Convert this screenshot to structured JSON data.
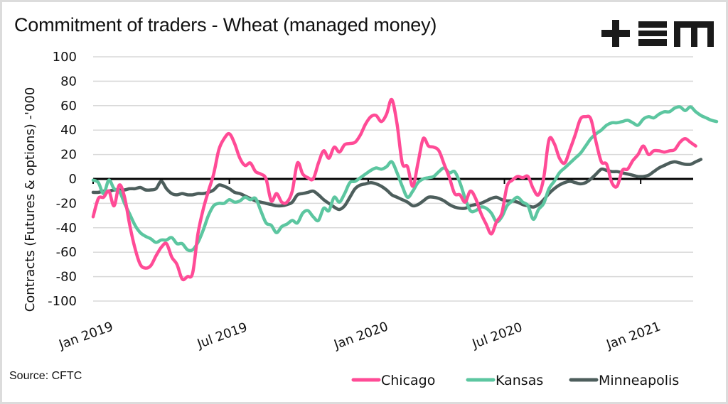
{
  "header": {
    "title": "Commitment of traders - Wheat (managed money)",
    "logo_text": "+EM"
  },
  "footer": {
    "source": "Source: CFTC"
  },
  "chart_data": {
    "type": "line",
    "title": "Commitment of traders - Wheat (managed money)",
    "xlabel": "",
    "ylabel": "Contracts (Futures & options) -'000",
    "ylim": [
      -100,
      100
    ],
    "yticks": [
      100,
      80,
      60,
      40,
      20,
      0,
      -20,
      -40,
      -60,
      -80,
      -100
    ],
    "ytick_labels": [
      "100",
      "80",
      "60",
      "40",
      "20",
      "0",
      "-20",
      "-40",
      "-60",
      "-80",
      "-100"
    ],
    "x_start": "2019-01-01",
    "x_step": "weekly",
    "x_count": 116,
    "xticks": [
      {
        "label": "Jan 2019",
        "index": 0
      },
      {
        "label": "Jul 2019",
        "index": 26
      },
      {
        "label": "Jan 2020",
        "index": 52.5
      },
      {
        "label": "Jul 2020",
        "index": 78.5
      },
      {
        "label": "Jan 2021",
        "index": 104.5
      }
    ],
    "grid": true,
    "legend_position": "bottom-right",
    "series": [
      {
        "name": "Chicago",
        "color": "#ff4b96",
        "values": [
          -31,
          -16,
          -15,
          -10,
          -22,
          -5,
          -15,
          -38,
          -57,
          -70,
          -73,
          -71,
          -63,
          -56,
          -53,
          -64,
          -70,
          -82,
          -80,
          -77,
          -45,
          -25,
          -10,
          4,
          24,
          33,
          37,
          29,
          17,
          11,
          13,
          6,
          4,
          0,
          -18,
          -12,
          -19,
          -19,
          -10,
          13,
          4,
          1,
          0,
          13,
          23,
          17,
          26,
          22,
          28,
          29,
          30,
          36,
          45,
          51,
          52,
          47,
          53,
          65,
          45,
          13,
          10,
          -6,
          13,
          33,
          27,
          26,
          23,
          12,
          1,
          -12,
          -13,
          -19,
          -10,
          -16,
          -28,
          -37,
          -45,
          -35,
          -28,
          -6,
          -1,
          2,
          1,
          2,
          -8,
          -13,
          1,
          32,
          29,
          17,
          13,
          24,
          36,
          49,
          51,
          49,
          30,
          14,
          12,
          -3,
          -6,
          7,
          8,
          15,
          20,
          27,
          20,
          23,
          23,
          22,
          23,
          24,
          30,
          33,
          30,
          27
        ]
      },
      {
        "name": "Kansas",
        "color": "#5cc6a0",
        "values": [
          -1,
          -3,
          -12,
          -1,
          -8,
          -10,
          -20,
          -29,
          -38,
          -44,
          -47,
          -49,
          -52,
          -50,
          -50,
          -48,
          -53,
          -53,
          -58,
          -58,
          -52,
          -42,
          -30,
          -22,
          -20,
          -20,
          -17,
          -19,
          -18,
          -15,
          -17,
          -16,
          -26,
          -36,
          -38,
          -44,
          -39,
          -37,
          -34,
          -36,
          -28,
          -26,
          -31,
          -34,
          -24,
          -26,
          -15,
          -19,
          -12,
          -3,
          -2,
          1,
          4,
          7,
          9,
          8,
          10,
          14,
          5,
          -6,
          -15,
          -10,
          -3,
          0,
          1,
          2,
          6,
          9,
          5,
          6,
          -3,
          -16,
          -26,
          -26,
          -23,
          -24,
          -28,
          -35,
          -31,
          -22,
          -18,
          -15,
          -19,
          -22,
          -33,
          -25,
          -20,
          -8,
          -2,
          5,
          9,
          13,
          17,
          21,
          27,
          33,
          37,
          40,
          44,
          46,
          46,
          47,
          48,
          46,
          44,
          49,
          51,
          50,
          53,
          55,
          55,
          58,
          59,
          56,
          59,
          55,
          52,
          50,
          48,
          47
        ]
      },
      {
        "name": "Minneapolis",
        "color": "#4d5e5c",
        "values": [
          -11,
          -11,
          -10,
          -10,
          -9,
          -9,
          -9,
          -8,
          -8,
          -7,
          -9,
          -9,
          -8,
          -2,
          -8,
          -12,
          -13,
          -12,
          -13,
          -13,
          -12,
          -12,
          -11,
          -9,
          -5,
          -6,
          -8,
          -11,
          -12,
          -14,
          -16,
          -18,
          -19,
          -20,
          -21,
          -22,
          -22,
          -21,
          -19,
          -13,
          -12,
          -11,
          -10,
          -13,
          -17,
          -20,
          -23,
          -25,
          -22,
          -15,
          -8,
          -5,
          -4,
          -3,
          -4,
          -6,
          -9,
          -13,
          -15,
          -17,
          -19,
          -22,
          -21,
          -18,
          -15,
          -15,
          -16,
          -18,
          -21,
          -23,
          -24,
          -24,
          -22,
          -21,
          -20,
          -18,
          -16,
          -15,
          -17,
          -18,
          -18,
          -19,
          -21,
          -22,
          -23,
          -21,
          -17,
          -12,
          -8,
          -5,
          -3,
          -2,
          -3,
          -4,
          -3,
          0,
          4,
          8,
          7,
          6,
          6,
          5,
          4,
          3,
          2,
          2,
          3,
          6,
          9,
          11,
          13,
          14,
          13,
          12,
          12,
          14,
          16
        ]
      }
    ]
  },
  "legend": {
    "items": [
      {
        "label": "Chicago",
        "color": "#ff4b96"
      },
      {
        "label": "Kansas",
        "color": "#5cc6a0"
      },
      {
        "label": "Minneapolis",
        "color": "#4d5e5c"
      }
    ]
  }
}
